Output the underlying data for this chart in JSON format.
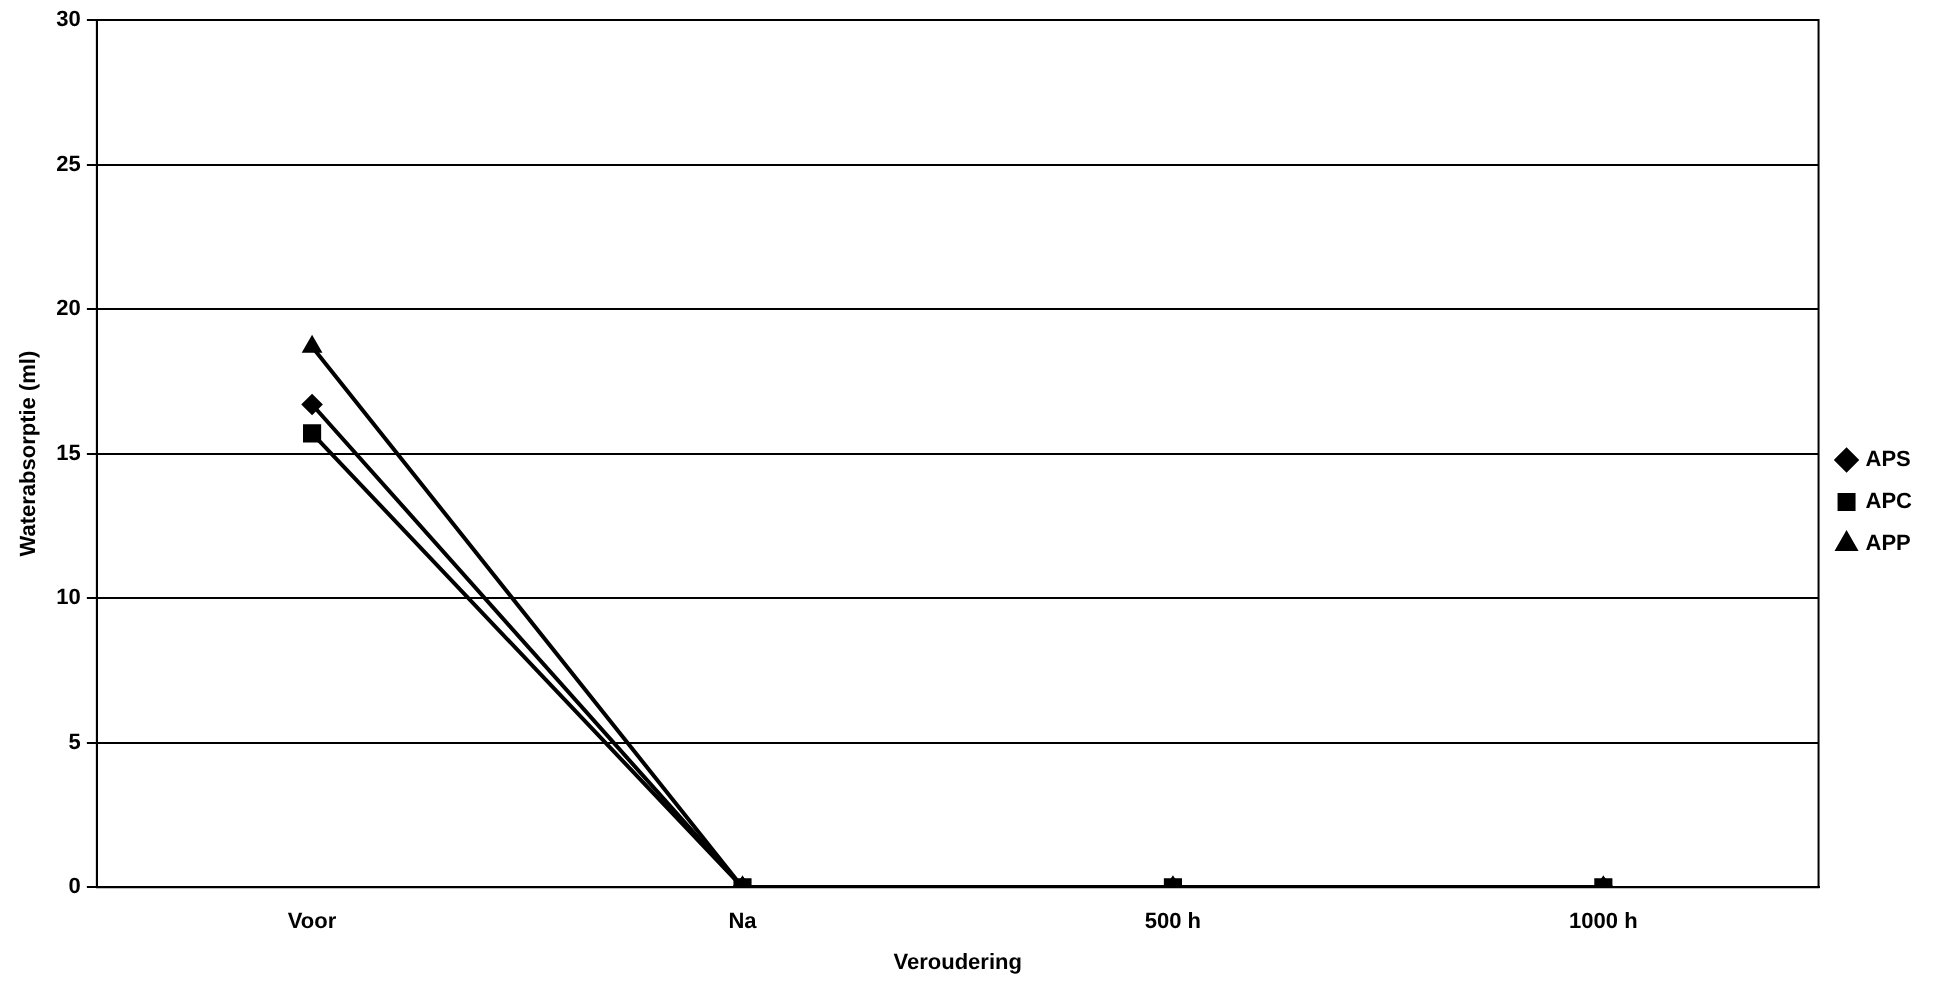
{
  "chart_data": {
    "type": "line",
    "xlabel": "Veroudering",
    "ylabel": "Waterabsorptie (ml)",
    "categories": [
      "Voor",
      "Na",
      "500 h",
      "1000 h"
    ],
    "series": [
      {
        "name": "APS",
        "color": "#000000",
        "marker": "diamond",
        "values": [
          16.7,
          0,
          0,
          0
        ]
      },
      {
        "name": "APC",
        "color": "#000000",
        "marker": "square",
        "values": [
          15.7,
          0,
          0,
          0
        ]
      },
      {
        "name": "APP",
        "color": "#000000",
        "marker": "triangle",
        "values": [
          18.7,
          0,
          0,
          0
        ]
      }
    ],
    "ylim": [
      0,
      30
    ],
    "yticks": [
      0,
      5,
      10,
      15,
      20,
      25,
      30
    ],
    "grid": "y",
    "legend": "right",
    "line_style": "solid"
  }
}
